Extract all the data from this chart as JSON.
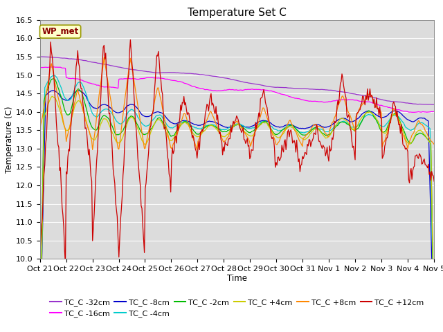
{
  "title": "Temperature Set C",
  "xlabel": "Time",
  "ylabel": "Temperature (C)",
  "ylim": [
    10.0,
    16.5
  ],
  "yticks": [
    10.0,
    10.5,
    11.0,
    11.5,
    12.0,
    12.5,
    13.0,
    13.5,
    14.0,
    14.5,
    15.0,
    15.5,
    16.0,
    16.5
  ],
  "x_labels": [
    "Oct 21",
    "Oct 22",
    "Oct 23",
    "Oct 24",
    "Oct 25",
    "Oct 26",
    "Oct 27",
    "Oct 28",
    "Oct 29",
    "Oct 30",
    "Oct 31",
    "Nov 1",
    "Nov 2",
    "Nov 3",
    "Nov 4",
    "Nov 5"
  ],
  "n_points": 480,
  "series": [
    {
      "label": "TC_C -32cm",
      "color": "#9933CC"
    },
    {
      "label": "TC_C -16cm",
      "color": "#FF00FF"
    },
    {
      "label": "TC_C -8cm",
      "color": "#0000CC"
    },
    {
      "label": "TC_C -4cm",
      "color": "#00CCCC"
    },
    {
      "label": "TC_C -2cm",
      "color": "#00BB00"
    },
    {
      "label": "TC_C +4cm",
      "color": "#CCCC00"
    },
    {
      "label": "TC_C +8cm",
      "color": "#FF8800"
    },
    {
      "label": "TC_C +12cm",
      "color": "#CC0000"
    }
  ],
  "wp_met_box": {
    "text": "WP_met",
    "facecolor": "#FFFFCC",
    "edgecolor": "#999900",
    "textcolor": "#880000"
  },
  "background_color": "#DCDCDC",
  "grid_color": "#FFFFFF",
  "title_fontsize": 11,
  "tick_fontsize": 8,
  "legend_fontsize": 8
}
